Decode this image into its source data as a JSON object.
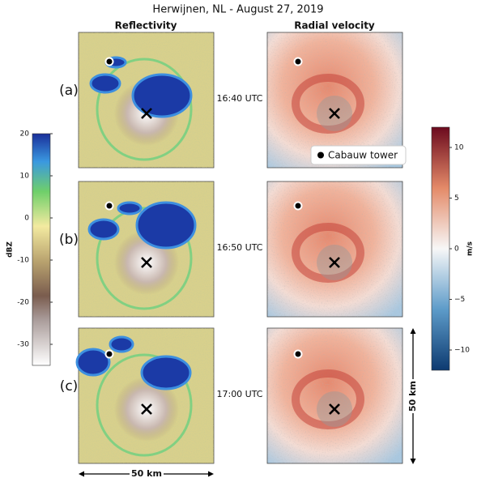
{
  "title": "Herwijnen, NL - August 27, 2019",
  "columns": [
    "Reflectivity",
    "Radial velocity"
  ],
  "rows": [
    {
      "label": "(a)",
      "time": "16:40 UTC"
    },
    {
      "label": "(b)",
      "time": "16:50 UTC"
    },
    {
      "label": "(c)",
      "time": "17:00 UTC"
    }
  ],
  "legend": "Cabauw tower",
  "scale_bars": {
    "horizontal": "50 km",
    "vertical": "50 km"
  },
  "colorbars": [
    {
      "label": "dBZ",
      "lim": [
        -35,
        20
      ],
      "ticks": [
        20,
        10,
        0,
        -10,
        -20,
        -30
      ]
    },
    {
      "label": "m/s",
      "lim": [
        -12,
        12
      ],
      "ticks": [
        10,
        5,
        0,
        {
          "value": -5,
          "label": "−5"
        },
        {
          "value": -10,
          "label": "−10"
        }
      ]
    }
  ]
}
